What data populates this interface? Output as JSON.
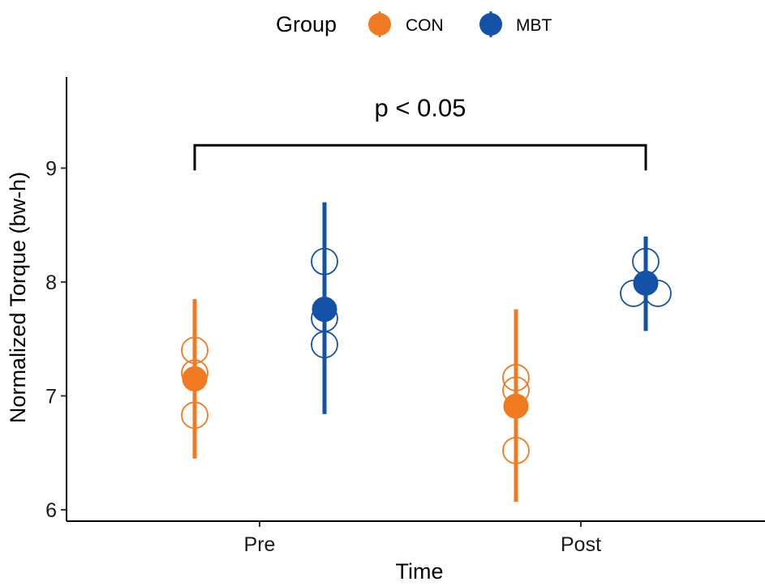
{
  "chart_data": {
    "type": "scatter",
    "xlabel": "Time",
    "ylabel": "Normalized Torque (bw-h)",
    "categories": [
      "Pre",
      "Post"
    ],
    "ylim": [
      5.9,
      9.8
    ],
    "yticks": [
      6,
      7,
      8,
      9
    ],
    "grid": false,
    "legend": {
      "title": "Group",
      "position": "top"
    },
    "series": [
      {
        "name": "CON",
        "color": "#F07A21",
        "points": [
          {
            "x": "Pre",
            "mean": 7.15,
            "lower": 6.45,
            "upper": 7.85,
            "individual": [
              7.4,
              7.2,
              6.83
            ]
          },
          {
            "x": "Post",
            "mean": 6.91,
            "lower": 6.07,
            "upper": 7.76,
            "individual": [
              7.16,
              7.05,
              6.52
            ]
          }
        ]
      },
      {
        "name": "MBT",
        "color": "#1352A6",
        "points": [
          {
            "x": "Pre",
            "mean": 7.76,
            "lower": 6.84,
            "upper": 8.7,
            "individual": [
              8.18,
              7.68,
              7.45
            ]
          },
          {
            "x": "Post",
            "mean": 7.99,
            "lower": 7.57,
            "upper": 8.4,
            "individual": [
              8.18,
              7.9,
              7.9
            ]
          }
        ]
      }
    ],
    "annotation": {
      "text": "p < 0.05",
      "bracket_from": "Pre",
      "bracket_to": "Post",
      "bracket_y": 9.2,
      "tick_bottom_y": 8.98
    }
  }
}
